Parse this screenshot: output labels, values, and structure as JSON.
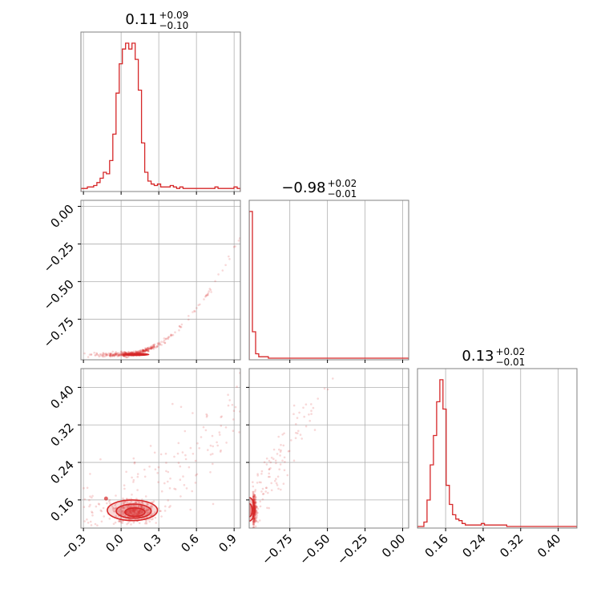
{
  "chart_data": {
    "type": "corner",
    "color": "#d62728",
    "grid": true,
    "titles": [
      {
        "value": "0.11",
        "plus": "+0.09",
        "minus": "−0.10"
      },
      {
        "value": "−0.98",
        "plus": "+0.02",
        "minus": "−0.01"
      },
      {
        "value": "0.13",
        "plus": "+0.02",
        "minus": "−0.01"
      }
    ],
    "params": [
      {
        "range": [
          -0.32,
          0.95
        ],
        "ticks": [
          -0.3,
          0.0,
          0.3,
          0.6,
          0.9
        ],
        "tick_labels": [
          "−0.3",
          "0.0",
          "0.3",
          "0.6",
          "0.9"
        ]
      },
      {
        "range": [
          -1.02,
          0.04
        ],
        "ticks": [
          -0.75,
          -0.5,
          -0.25,
          0.0
        ],
        "tick_labels": [
          "−0.75",
          "−0.50",
          "−0.25",
          "0.00"
        ]
      },
      {
        "range": [
          0.1,
          0.44
        ],
        "ticks": [
          0.16,
          0.24,
          0.32,
          0.4
        ],
        "tick_labels": [
          "0.16",
          "0.24",
          "0.32",
          "0.40"
        ]
      }
    ],
    "histograms": [
      {
        "param": 0,
        "bin_edges_start": -0.32,
        "bin_width": 0.0254,
        "counts": [
          1,
          1,
          2,
          2,
          3,
          5,
          8,
          12,
          11,
          20,
          38,
          66,
          86,
          96,
          100,
          96,
          100,
          89,
          68,
          32,
          12,
          6,
          4,
          3,
          4,
          2,
          2,
          2,
          3,
          2,
          1,
          2,
          1,
          1,
          1,
          1,
          1,
          1,
          1,
          1,
          1,
          1,
          2,
          1,
          1,
          1,
          1,
          1,
          2,
          1
        ]
      },
      {
        "param": 1,
        "bin_edges_start": -1.02,
        "bin_width": 0.0212,
        "counts": [
          100,
          18,
          3,
          1,
          1,
          1,
          0,
          0,
          0,
          0,
          0,
          0,
          0,
          0,
          0,
          0,
          0,
          0,
          0,
          0,
          0,
          0,
          0,
          0,
          0,
          0,
          0,
          0,
          0,
          0,
          0,
          0,
          0,
          0,
          0,
          0,
          0,
          0,
          0,
          0,
          0,
          0,
          0,
          0,
          0,
          0,
          0,
          0,
          0,
          0
        ]
      },
      {
        "param": 2,
        "bin_edges_start": 0.1,
        "bin_width": 0.0068,
        "counts": [
          0,
          0,
          3,
          18,
          42,
          62,
          85,
          100,
          80,
          28,
          15,
          8,
          5,
          4,
          2,
          1,
          1,
          1,
          1,
          1,
          2,
          1,
          1,
          1,
          1,
          1,
          1,
          1,
          0,
          0,
          0,
          0,
          0,
          0,
          0,
          0,
          0,
          0,
          0,
          0,
          0,
          0,
          0,
          0,
          0,
          0,
          0,
          0,
          0,
          0
        ]
      }
    ],
    "pairs": [
      {
        "x_param": 0,
        "y_param": 1
      },
      {
        "x_param": 0,
        "y_param": 2
      },
      {
        "x_param": 1,
        "y_param": 2
      }
    ]
  }
}
